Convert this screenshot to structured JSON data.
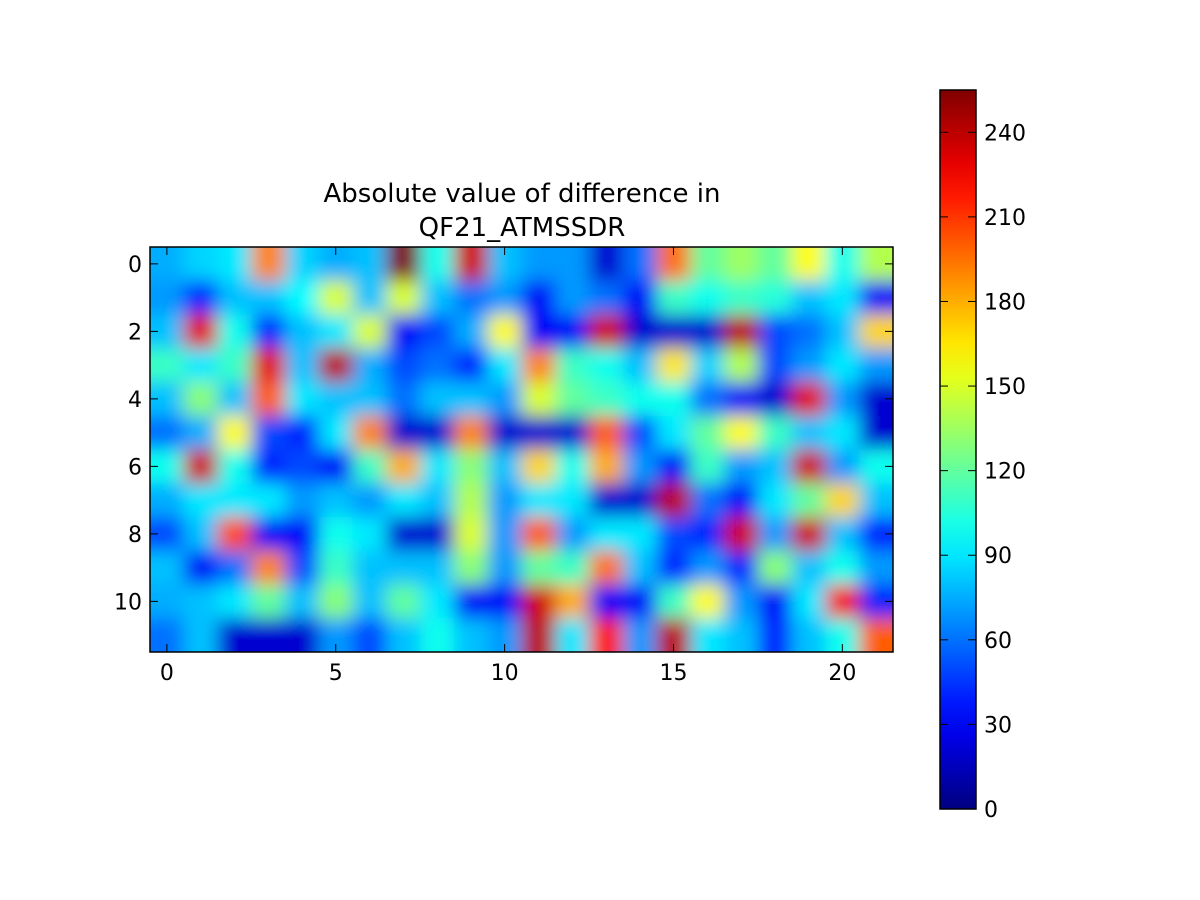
{
  "chart_data": {
    "type": "heatmap",
    "title_lines": [
      "Absolute value of difference in",
      "QF21_ATMSSDR"
    ],
    "xlabel": "",
    "ylabel": "",
    "colormap": "jet",
    "interpolation": "bicubic",
    "x_ticks": [
      0,
      5,
      10,
      15,
      20
    ],
    "y_ticks": [
      0,
      2,
      4,
      6,
      8,
      10
    ],
    "x_range": [
      -0.5,
      21.5
    ],
    "y_range": [
      11.5,
      -0.5
    ],
    "colorbar": {
      "range": [
        0,
        255
      ],
      "ticks": [
        0,
        30,
        60,
        90,
        120,
        150,
        180,
        210,
        240
      ]
    },
    "columns": 22,
    "rows": 12,
    "values": [
      [
        75,
        85,
        90,
        190,
        85,
        75,
        80,
        255,
        100,
        235,
        80,
        70,
        70,
        20,
        60,
        195,
        120,
        135,
        120,
        160,
        100,
        140
      ],
      [
        70,
        40,
        80,
        80,
        95,
        150,
        80,
        150,
        80,
        60,
        70,
        30,
        70,
        60,
        30,
        110,
        100,
        110,
        105,
        80,
        90,
        30
      ],
      [
        80,
        230,
        100,
        40,
        80,
        90,
        150,
        30,
        50,
        75,
        160,
        30,
        30,
        235,
        20,
        20,
        20,
        240,
        50,
        60,
        80,
        170
      ],
      [
        110,
        90,
        110,
        230,
        80,
        240,
        75,
        50,
        60,
        40,
        90,
        190,
        110,
        100,
        80,
        165,
        85,
        140,
        50,
        70,
        90,
        70
      ],
      [
        80,
        130,
        80,
        200,
        90,
        80,
        80,
        60,
        80,
        80,
        70,
        150,
        120,
        110,
        100,
        100,
        60,
        30,
        20,
        230,
        70,
        20
      ],
      [
        60,
        75,
        160,
        50,
        40,
        90,
        190,
        20,
        20,
        190,
        20,
        20,
        20,
        200,
        50,
        90,
        120,
        160,
        110,
        80,
        90,
        20
      ],
      [
        100,
        235,
        100,
        40,
        50,
        30,
        110,
        180,
        90,
        130,
        80,
        170,
        100,
        180,
        70,
        30,
        110,
        70,
        80,
        235,
        70,
        100
      ],
      [
        75,
        90,
        90,
        90,
        70,
        80,
        70,
        90,
        80,
        140,
        70,
        90,
        90,
        20,
        20,
        240,
        60,
        30,
        90,
        120,
        170,
        80
      ],
      [
        50,
        80,
        205,
        30,
        30,
        100,
        90,
        20,
        20,
        150,
        70,
        200,
        70,
        90,
        90,
        50,
        40,
        235,
        70,
        235,
        80,
        40
      ],
      [
        80,
        30,
        60,
        190,
        50,
        110,
        80,
        80,
        80,
        130,
        70,
        120,
        110,
        195,
        80,
        40,
        70,
        40,
        130,
        80,
        100,
        70
      ],
      [
        75,
        80,
        90,
        120,
        80,
        130,
        80,
        120,
        90,
        30,
        30,
        235,
        180,
        30,
        30,
        110,
        160,
        70,
        30,
        90,
        225,
        40
      ],
      [
        60,
        80,
        20,
        20,
        20,
        70,
        50,
        80,
        100,
        80,
        70,
        240,
        90,
        220,
        70,
        240,
        90,
        80,
        40,
        80,
        100,
        200
      ]
    ]
  }
}
